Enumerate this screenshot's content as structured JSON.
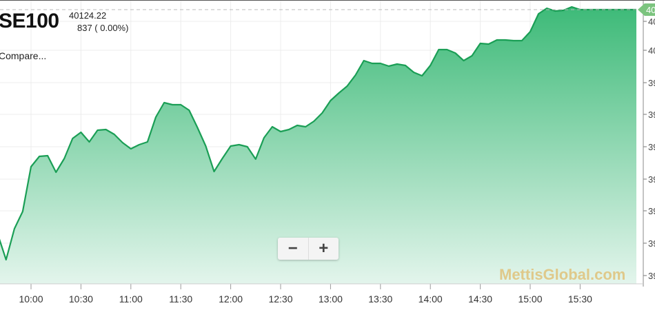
{
  "header": {
    "symbol": "SE100",
    "price": "40124.22",
    "change": "837 ( 0.00%)",
    "compare": "Compare..."
  },
  "zoom": {
    "minus": "−",
    "plus": "+"
  },
  "watermark": "MettisGlobal.com",
  "colors": {
    "line": "#1a9e55",
    "fill_top": "#3dba78",
    "fill_bottom": "#e3f5ec",
    "badge": "#7cc47f"
  },
  "chart_data": {
    "type": "area",
    "title": "SE100",
    "last_value_label": "40",
    "x": [
      "09:40",
      "09:45",
      "09:50",
      "09:55",
      "10:00",
      "10:05",
      "10:10",
      "10:15",
      "10:20",
      "10:25",
      "10:30",
      "10:35",
      "10:40",
      "10:45",
      "10:50",
      "10:55",
      "11:00",
      "11:05",
      "11:10",
      "11:15",
      "11:20",
      "11:25",
      "11:30",
      "11:35",
      "11:40",
      "11:45",
      "11:50",
      "11:55",
      "12:00",
      "12:05",
      "12:10",
      "12:15",
      "12:20",
      "12:25",
      "12:30",
      "12:35",
      "12:40",
      "12:45",
      "12:50",
      "12:55",
      "13:00",
      "13:05",
      "13:10",
      "13:15",
      "13:20",
      "13:25",
      "13:30",
      "13:35",
      "13:40",
      "13:45",
      "13:50",
      "13:55",
      "14:00",
      "14:05",
      "14:10",
      "14:15",
      "14:20",
      "14:25",
      "14:30",
      "14:35",
      "14:40",
      "14:45",
      "14:50",
      "14:55",
      "15:00",
      "15:05",
      "15:10",
      "15:15",
      "15:20",
      "15:25",
      "15:30",
      "15:35"
    ],
    "values": [
      39798,
      39761,
      39806,
      39831,
      39896,
      39911,
      39912,
      39888,
      39908,
      39937,
      39946,
      39932,
      39949,
      39950,
      39943,
      39931,
      39922,
      39928,
      39932,
      39968,
      39989,
      39986,
      39986,
      39978,
      39953,
      39926,
      39889,
      39908,
      39926,
      39928,
      39925,
      39907,
      39938,
      39954,
      39947,
      39950,
      39956,
      39954,
      39962,
      39974,
      39992,
      40003,
      40013,
      40029,
      40050,
      40046,
      40046,
      40042,
      40045,
      40043,
      40033,
      40028,
      40043,
      40066,
      40066,
      40061,
      40050,
      40057,
      40075,
      40074,
      40080,
      40080,
      40079,
      40079,
      40092,
      40118,
      40126,
      40122,
      40123,
      40128,
      40124,
      40124
    ],
    "x_ticks": [
      "10:00",
      "10:30",
      "11:00",
      "11:30",
      "12:00",
      "12:30",
      "13:00",
      "13:30",
      "14:00",
      "14:30",
      "15:00",
      "15:30"
    ],
    "y_tick_labels": [
      "40",
      "40",
      "39",
      "39",
      "39",
      "39",
      "39",
      "39",
      "39"
    ],
    "ylim": [
      39726,
      40138
    ],
    "grid": true
  }
}
